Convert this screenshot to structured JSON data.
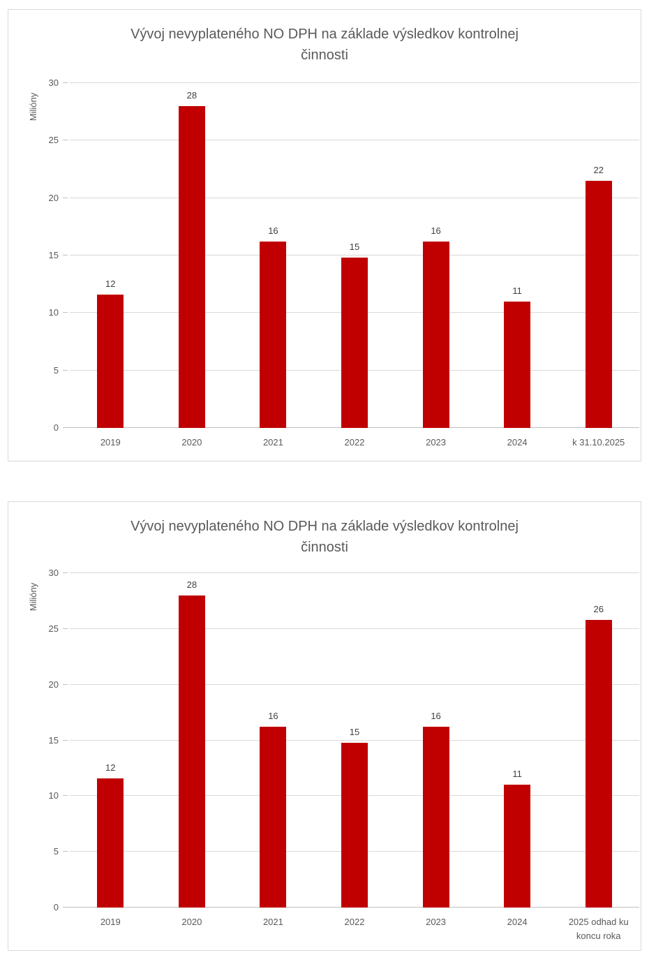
{
  "colors": {
    "bar": "#c00000",
    "title_text": "#595959",
    "axis_text": "#595959",
    "data_label_text": "#404040",
    "gridline": "#d9d9d9",
    "axis_line": "#bfbfbf",
    "chart_border": "#d9d9d9",
    "background": "#ffffff"
  },
  "chart_data": [
    {
      "type": "bar",
      "title": "Vývoj nevyplateného NO DPH na základe výsledkov kontrolnej činnosti",
      "title_lines": [
        "Vývoj nevyplateného NO DPH na základe výsledkov kontrolnej",
        "činnosti"
      ],
      "ylabel": "Milióny",
      "xlabel": "",
      "ylim": [
        0,
        30
      ],
      "yticks": [
        0,
        5,
        10,
        15,
        20,
        25,
        30
      ],
      "grid": true,
      "legend": false,
      "categories": [
        "2019",
        "2020",
        "2021",
        "2022",
        "2023",
        "2024",
        "k 31.10.2025"
      ],
      "values": [
        11.6,
        28,
        16.2,
        14.8,
        16.2,
        11,
        21.5
      ],
      "data_labels": [
        "12",
        "28",
        "16",
        "15",
        "16",
        "11",
        "22"
      ],
      "bar_color": "#c00000"
    },
    {
      "type": "bar",
      "title": "Vývoj nevyplateného NO DPH na základe výsledkov kontrolnej činnosti",
      "title_lines": [
        "Vývoj nevyplateného NO DPH na základe výsledkov kontrolnej",
        "činnosti"
      ],
      "ylabel": "Milióny",
      "xlabel": "",
      "ylim": [
        0,
        30
      ],
      "yticks": [
        0,
        5,
        10,
        15,
        20,
        25,
        30
      ],
      "grid": true,
      "legend": false,
      "categories": [
        "2019",
        "2020",
        "2021",
        "2022",
        "2023",
        "2024",
        "2025 odhad ku koncu roka"
      ],
      "values": [
        11.6,
        28,
        16.2,
        14.8,
        16.2,
        11,
        25.8
      ],
      "data_labels": [
        "12",
        "28",
        "16",
        "15",
        "16",
        "11",
        "26"
      ],
      "bar_color": "#c00000"
    }
  ]
}
